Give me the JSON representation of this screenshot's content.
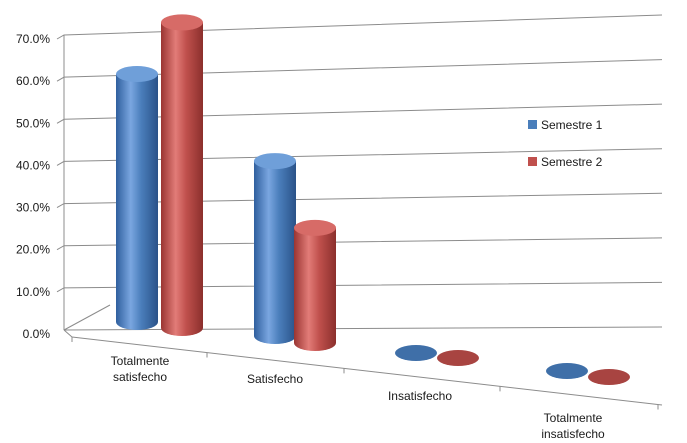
{
  "chart_data": {
    "type": "bar",
    "style": "3d-cylinder",
    "categories": [
      [
        "Totalmente",
        "satisfecho"
      ],
      [
        "Satisfecho"
      ],
      [
        "Insatisfecho"
      ],
      [
        "Totalmente",
        "insatisfecho"
      ]
    ],
    "series": [
      {
        "name": "Semestre 1",
        "color": "#4a7ebb",
        "values": [
          56.0,
          39.5,
          0.0,
          0.0
        ]
      },
      {
        "name": "Semestre 2",
        "color": "#c0504d",
        "values": [
          69.0,
          26.0,
          0.0,
          0.0
        ]
      }
    ],
    "ylim": [
      0,
      70
    ],
    "yticks": [
      "0.0%",
      "10.0%",
      "20.0%",
      "30.0%",
      "40.0%",
      "50.0%",
      "60.0%",
      "70.0%"
    ],
    "grid": true,
    "legend_position": "right"
  }
}
